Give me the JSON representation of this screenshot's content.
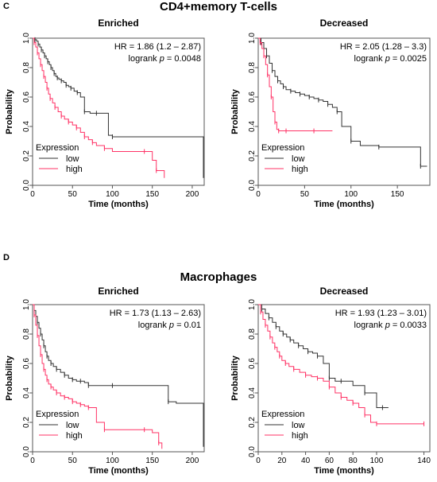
{
  "sections": [
    {
      "letter": "C",
      "title": "CD4+memory T-cells",
      "plots": [
        {
          "chart_data": {
            "type": "line",
            "title": "Enriched",
            "xlabel": "Time (months)",
            "ylabel": "Probability",
            "xlim": [
              0,
              215
            ],
            "ylim": [
              0,
              1
            ],
            "xticks": [
              0,
              50,
              100,
              150,
              200
            ],
            "yticks": [
              0.0,
              0.2,
              0.4,
              0.6,
              0.8,
              1.0
            ],
            "ytick_labels": [
              "0.0",
              "0.2",
              "0.4",
              "0.6",
              "0.8",
              "1.0"
            ],
            "annotation_lines": [
              "HR = 1.86 (1.2 – 2.87)",
              "logrank p = 0.0048"
            ],
            "legend": {
              "title": "Expression",
              "entries": [
                "low",
                "high"
              ],
              "position": "bottom-left"
            },
            "series": [
              {
                "name": "low",
                "color": "#333333",
                "x": [
                  0,
                  3,
                  5,
                  7,
                  9,
                  11,
                  13,
                  15,
                  17,
                  19,
                  21,
                  23,
                  25,
                  27,
                  29,
                  31,
                  33,
                  36,
                  39,
                  42,
                  45,
                  48,
                  52,
                  56,
                  60,
                  65,
                  72,
                  80,
                  95,
                  100,
                  214
                ],
                "y": [
                  1,
                  0.99,
                  0.98,
                  0.96,
                  0.94,
                  0.92,
                  0.9,
                  0.88,
                  0.86,
                  0.84,
                  0.82,
                  0.8,
                  0.78,
                  0.76,
                  0.74,
                  0.73,
                  0.72,
                  0.71,
                  0.7,
                  0.68,
                  0.67,
                  0.66,
                  0.64,
                  0.63,
                  0.6,
                  0.5,
                  0.49,
                  0.49,
                  0.34,
                  0.33,
                  0.05
                ]
              },
              {
                "name": "high",
                "color": "#ff3366",
                "x": [
                  0,
                  2,
                  4,
                  6,
                  8,
                  10,
                  12,
                  14,
                  16,
                  18,
                  20,
                  22,
                  25,
                  28,
                  32,
                  36,
                  40,
                  45,
                  50,
                  55,
                  60,
                  65,
                  70,
                  75,
                  80,
                  90,
                  100,
                  140,
                  150,
                  155,
                  165
                ],
                "y": [
                  1,
                  0.97,
                  0.94,
                  0.9,
                  0.86,
                  0.82,
                  0.78,
                  0.74,
                  0.7,
                  0.66,
                  0.62,
                  0.59,
                  0.56,
                  0.53,
                  0.5,
                  0.47,
                  0.45,
                  0.43,
                  0.41,
                  0.39,
                  0.36,
                  0.33,
                  0.31,
                  0.29,
                  0.27,
                  0.25,
                  0.23,
                  0.23,
                  0.17,
                  0.1,
                  0.05
                ]
              }
            ]
          }
        },
        {
          "chart_data": {
            "type": "line",
            "title": "Decreased",
            "xlabel": "Time (months)",
            "ylabel": "Probability",
            "xlim": [
              0,
              185
            ],
            "ylim": [
              0,
              1
            ],
            "xticks": [
              0,
              50,
              100,
              150
            ],
            "yticks": [
              0.0,
              0.2,
              0.4,
              0.6,
              0.8,
              1.0
            ],
            "ytick_labels": [
              "0.0",
              "0.2",
              "0.4",
              "0.6",
              "0.8",
              "1.0"
            ],
            "annotation_lines": [
              "HR = 2.05 (1.28 – 3.3)",
              "logrank p = 0.0025"
            ],
            "legend": {
              "title": "Expression",
              "entries": [
                "low",
                "high"
              ],
              "position": "bottom-left"
            },
            "series": [
              {
                "name": "low",
                "color": "#333333",
                "x": [
                  0,
                  3,
                  6,
                  9,
                  12,
                  15,
                  18,
                  21,
                  24,
                  27,
                  30,
                  35,
                  40,
                  45,
                  50,
                  55,
                  60,
                  65,
                  70,
                  75,
                  80,
                  85,
                  90,
                  100,
                  110,
                  130,
                  150,
                  175,
                  182
                ],
                "y": [
                  1,
                  0.97,
                  0.93,
                  0.88,
                  0.83,
                  0.78,
                  0.74,
                  0.71,
                  0.69,
                  0.67,
                  0.65,
                  0.64,
                  0.63,
                  0.62,
                  0.61,
                  0.6,
                  0.59,
                  0.58,
                  0.57,
                  0.55,
                  0.53,
                  0.5,
                  0.4,
                  0.3,
                  0.27,
                  0.26,
                  0.26,
                  0.13,
                  0.13
                ]
              },
              {
                "name": "high",
                "color": "#ff3366",
                "x": [
                  0,
                  2,
                  4,
                  6,
                  8,
                  10,
                  12,
                  14,
                  16,
                  18,
                  20,
                  22,
                  25,
                  30,
                  40,
                  60,
                  80
                ],
                "y": [
                  1,
                  0.97,
                  0.93,
                  0.88,
                  0.82,
                  0.75,
                  0.67,
                  0.6,
                  0.5,
                  0.43,
                  0.38,
                  0.37,
                  0.37,
                  0.37,
                  0.37,
                  0.37,
                  0.37
                ]
              }
            ]
          }
        }
      ]
    },
    {
      "letter": "D",
      "title": "Macrophages",
      "plots": [
        {
          "chart_data": {
            "type": "line",
            "title": "Enriched",
            "xlabel": "Time (months)",
            "ylabel": "Probability",
            "xlim": [
              0,
              215
            ],
            "ylim": [
              0,
              1
            ],
            "xticks": [
              0,
              50,
              100,
              150,
              200
            ],
            "yticks": [
              0.0,
              0.2,
              0.4,
              0.6,
              0.8,
              1.0
            ],
            "ytick_labels": [
              "0.0",
              "0.2",
              "0.4",
              "0.6",
              "0.8",
              "1.0"
            ],
            "annotation_lines": [
              "HR = 1.73 (1.13 – 2.63)",
              "logrank p = 0.01"
            ],
            "legend": {
              "title": "Expression",
              "entries": [
                "low",
                "high"
              ],
              "position": "bottom-left"
            },
            "series": [
              {
                "name": "low",
                "color": "#333333",
                "x": [
                  0,
                  2,
                  4,
                  6,
                  8,
                  10,
                  12,
                  14,
                  16,
                  18,
                  20,
                  23,
                  26,
                  30,
                  35,
                  40,
                  45,
                  50,
                  55,
                  60,
                  65,
                  70,
                  80,
                  100,
                  140,
                  170,
                  180,
                  214
                ],
                "y": [
                  1,
                  0.96,
                  0.92,
                  0.88,
                  0.84,
                  0.8,
                  0.76,
                  0.72,
                  0.68,
                  0.65,
                  0.62,
                  0.6,
                  0.58,
                  0.56,
                  0.54,
                  0.52,
                  0.5,
                  0.49,
                  0.48,
                  0.48,
                  0.47,
                  0.45,
                  0.45,
                  0.45,
                  0.45,
                  0.34,
                  0.33,
                  0.05
                ]
              },
              {
                "name": "high",
                "color": "#ff3366",
                "x": [
                  0,
                  2,
                  4,
                  6,
                  8,
                  10,
                  12,
                  14,
                  16,
                  18,
                  20,
                  23,
                  26,
                  30,
                  35,
                  40,
                  45,
                  50,
                  55,
                  60,
                  65,
                  70,
                  80,
                  90,
                  100,
                  140,
                  150,
                  158,
                  162
                ],
                "y": [
                  1,
                  0.93,
                  0.86,
                  0.79,
                  0.72,
                  0.66,
                  0.6,
                  0.56,
                  0.52,
                  0.49,
                  0.46,
                  0.44,
                  0.42,
                  0.4,
                  0.38,
                  0.37,
                  0.36,
                  0.34,
                  0.33,
                  0.32,
                  0.31,
                  0.3,
                  0.2,
                  0.15,
                  0.15,
                  0.15,
                  0.13,
                  0.06,
                  0.02
                ]
              }
            ]
          }
        },
        {
          "chart_data": {
            "type": "line",
            "title": "Decreased",
            "xlabel": "Time (months)",
            "ylabel": "Probability",
            "xlim": [
              0,
              145
            ],
            "ylim": [
              0,
              1
            ],
            "xticks": [
              0,
              20,
              40,
              60,
              80,
              100,
              140
            ],
            "yticks": [
              0.0,
              0.2,
              0.4,
              0.6,
              0.8,
              1.0
            ],
            "ytick_labels": [
              "0.0",
              "0.2",
              "0.4",
              "0.6",
              "0.8",
              "1.0"
            ],
            "annotation_lines": [
              "HR = 1.93 (1.23 – 3.01)",
              "logrank p = 0.0033"
            ],
            "legend": {
              "title": "Expression",
              "entries": [
                "low",
                "high"
              ],
              "position": "bottom-left"
            },
            "series": [
              {
                "name": "low",
                "color": "#333333",
                "x": [
                  0,
                  3,
                  6,
                  9,
                  12,
                  15,
                  18,
                  21,
                  24,
                  27,
                  30,
                  34,
                  38,
                  42,
                  46,
                  50,
                  55,
                  60,
                  65,
                  70,
                  80,
                  90,
                  100,
                  105,
                  110
                ],
                "y": [
                  1,
                  0.97,
                  0.94,
                  0.91,
                  0.88,
                  0.85,
                  0.82,
                  0.8,
                  0.78,
                  0.76,
                  0.74,
                  0.72,
                  0.7,
                  0.68,
                  0.67,
                  0.65,
                  0.6,
                  0.5,
                  0.48,
                  0.48,
                  0.45,
                  0.4,
                  0.3,
                  0.3,
                  0.3
                ]
              },
              {
                "name": "high",
                "color": "#ff3366",
                "x": [
                  0,
                  2,
                  4,
                  6,
                  8,
                  10,
                  12,
                  14,
                  16,
                  18,
                  20,
                  23,
                  26,
                  30,
                  35,
                  40,
                  45,
                  50,
                  55,
                  60,
                  65,
                  70,
                  75,
                  80,
                  85,
                  90,
                  95,
                  100,
                  120,
                  140
                ],
                "y": [
                  1,
                  0.95,
                  0.9,
                  0.86,
                  0.82,
                  0.78,
                  0.74,
                  0.71,
                  0.68,
                  0.65,
                  0.62,
                  0.6,
                  0.58,
                  0.56,
                  0.54,
                  0.52,
                  0.51,
                  0.5,
                  0.48,
                  0.44,
                  0.4,
                  0.37,
                  0.35,
                  0.33,
                  0.3,
                  0.25,
                  0.2,
                  0.19,
                  0.19,
                  0.19
                ]
              }
            ]
          }
        }
      ]
    }
  ]
}
